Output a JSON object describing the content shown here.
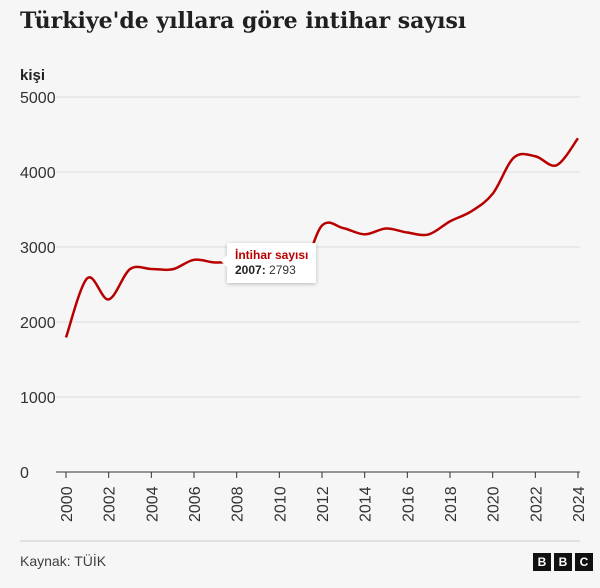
{
  "chart_data": {
    "type": "line",
    "title": "Türkiye'de yıllara göre intihar sayısı",
    "ylabel": "kişi",
    "xlabel": "",
    "ylim": [
      0,
      5000
    ],
    "xlim": [
      2000,
      2024
    ],
    "yticks": [
      0,
      1000,
      2000,
      3000,
      4000,
      5000
    ],
    "xticks": [
      2000,
      2002,
      2004,
      2006,
      2008,
      2010,
      2012,
      2014,
      2016,
      2018,
      2020,
      2022,
      2024
    ],
    "grid": true,
    "series": [
      {
        "name": "İntihar sayısı",
        "color": "#b80000",
        "x": [
          2000,
          2001,
          2002,
          2003,
          2004,
          2005,
          2006,
          2007,
          2008,
          2009,
          2010,
          2011,
          2012,
          2013,
          2014,
          2015,
          2016,
          2017,
          2018,
          2019,
          2020,
          2021,
          2022,
          2023,
          2024
        ],
        "y": [
          1794,
          2584,
          2301,
          2705,
          2707,
          2703,
          2829,
          2793,
          2816,
          2898,
          2933,
          2677,
          3287,
          3252,
          3169,
          3246,
          3193,
          3168,
          3342,
          3476,
          3710,
          4194,
          4210,
          4090,
          4450
        ]
      }
    ],
    "tooltip": {
      "series": "İntihar sayısı",
      "year": "2007:",
      "value": "2793"
    }
  },
  "source": "Kaynak: TÜİK",
  "logo": [
    "B",
    "B",
    "C"
  ]
}
